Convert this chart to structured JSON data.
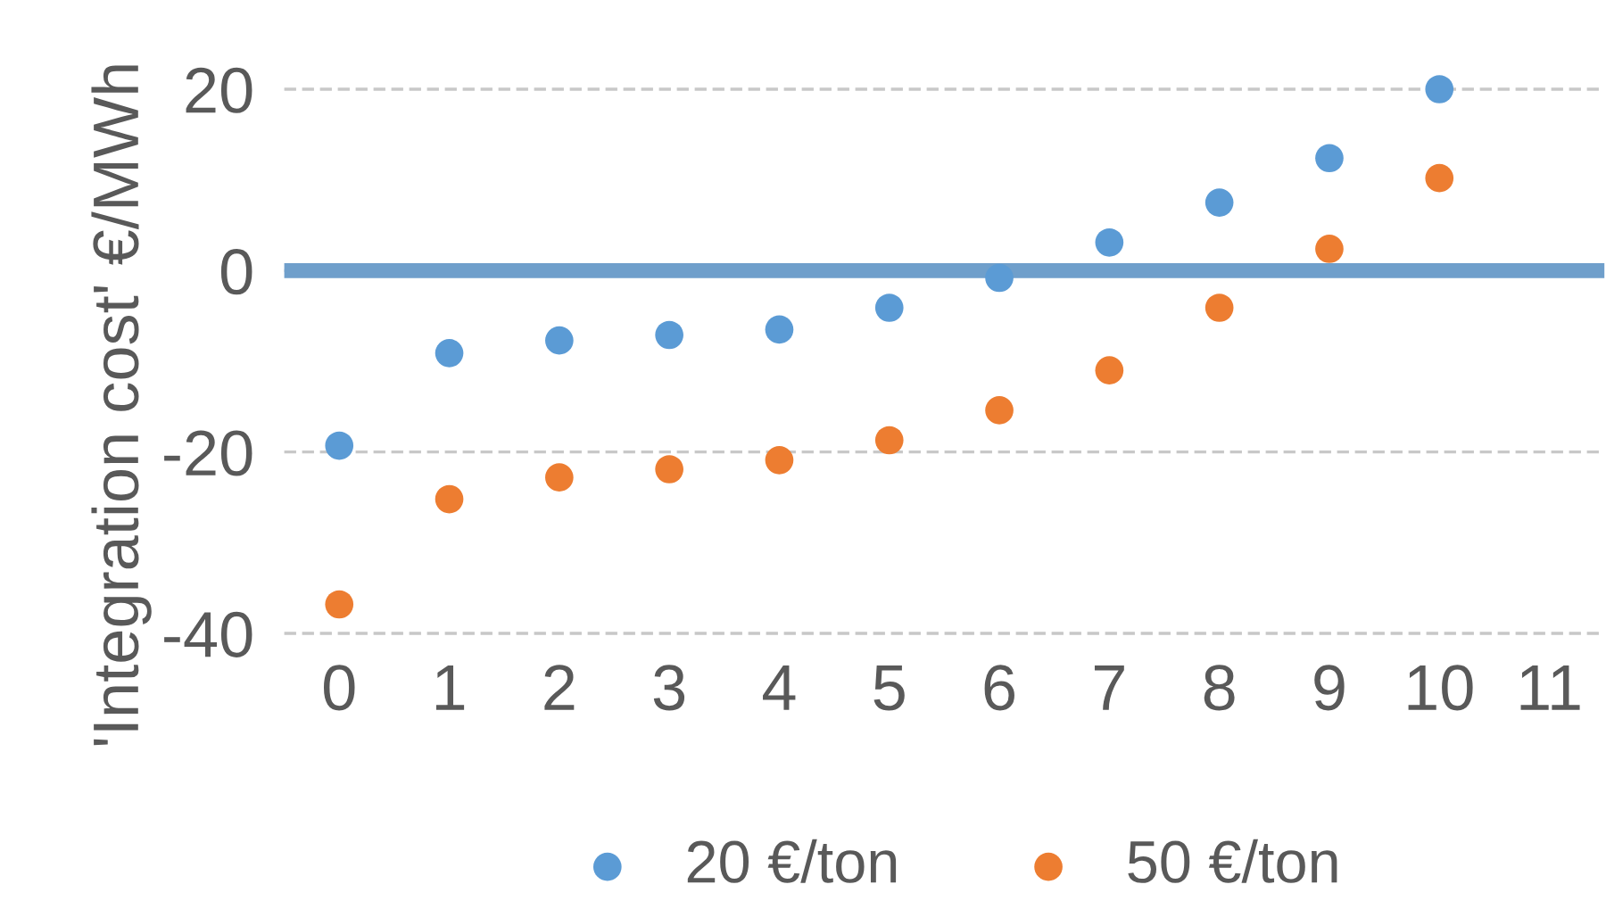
{
  "chart_data": {
    "type": "scatter",
    "ylabel": "'Integration cost' €/MWh",
    "categories": [
      "0",
      "1",
      "2",
      "3",
      "4",
      "5",
      "6",
      "7",
      "8",
      "9",
      "10",
      "11"
    ],
    "series": [
      {
        "name": "20 €/ton",
        "color": "#5b9bd5",
        "values": [
          -19.3,
          -9.1,
          -7.7,
          -7.1,
          -6.5,
          -4.1,
          -0.8,
          3.1,
          7.5,
          12.4,
          20,
          null
        ]
      },
      {
        "name": "50 €/ton",
        "color": "#ed7d31",
        "values": [
          -36.8,
          -25.2,
          -22.8,
          -21.9,
          -20.9,
          -18.7,
          -15.4,
          -11.0,
          -4.1,
          2.4,
          10.2,
          null
        ]
      }
    ],
    "ylim": [
      -40,
      20
    ],
    "yticks": [
      -40,
      -20,
      0,
      20
    ],
    "grid": "y",
    "legend": "bottom",
    "marker": "circle",
    "ref_lines": [
      {
        "axis": "y",
        "value": 0,
        "color": "#6f9fcb"
      }
    ]
  }
}
